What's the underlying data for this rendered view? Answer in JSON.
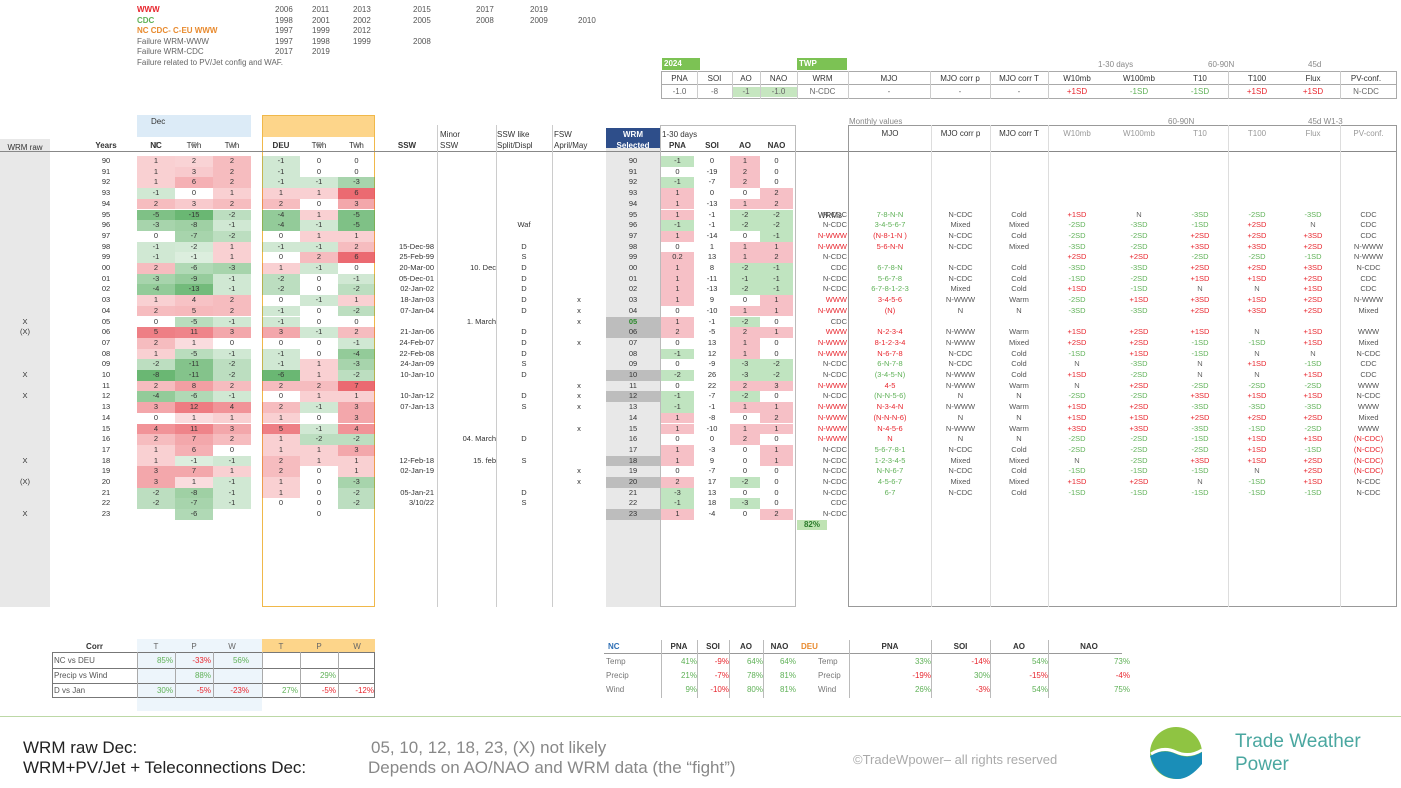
{
  "legend": [
    {
      "label": "WWW",
      "color": "#e8262e",
      "years": [
        "2006",
        "2011",
        "2013",
        "2015",
        "2017",
        "2019"
      ]
    },
    {
      "label": "CDC",
      "color": "#5fb157",
      "years": [
        "1998",
        "2001",
        "2002",
        "2005",
        "2008",
        "2009",
        "2010"
      ]
    },
    {
      "label": "NC CDC- C-EU WWW",
      "color": "#e88a2e",
      "years": [
        "1997",
        "1999",
        "2012"
      ]
    },
    {
      "label": "Failure WRM-WWW",
      "color": "#666",
      "years": [
        "1997",
        "1998",
        "1999",
        "2008"
      ]
    },
    {
      "label": "Failure WRM-CDC",
      "color": "#666",
      "years": [
        "2017",
        "2019"
      ]
    },
    {
      "label": "Failure related to PV/Jet config and WAF.",
      "color": "#666",
      "years": []
    }
  ],
  "forecast": {
    "year_label": "2024",
    "twp_label": "TWP",
    "hdr1": [
      "1-30 days",
      "60-90N",
      "45d"
    ],
    "cols": [
      "PNA",
      "SOI",
      "AO",
      "NAO",
      "WRM",
      "MJO",
      "MJO corr p",
      "MJO corr T",
      "W10mb",
      "W100mb",
      "T10",
      "T100",
      "Flux",
      "PV-conf."
    ],
    "vals": [
      "-1.0",
      "-8",
      "-1",
      "-1.0",
      "N-CDC",
      "-",
      "-",
      "-",
      "+1SD",
      "-1SD",
      "-1SD",
      "+1SD",
      "+1SD",
      "N-CDC"
    ]
  },
  "main": {
    "dec_label": "Dec",
    "monthly_label": "Monthly values",
    "h_60_90": "60-90N",
    "h_45d": "45d W1-3",
    "h_minor": "Minor",
    "h_sswlike": "SSW like",
    "h_fsw": "FSW",
    "h_wrm": "WRM",
    "h_1_30": "1-30 days",
    "h_wrms": "WRMs",
    "cols": [
      "WRM raw",
      "Years",
      "NC",
      "Twh",
      "Twh",
      "DEU",
      "Twh",
      "Twh",
      "SSW",
      "SSW",
      "Split/Displ",
      "April/May",
      "Selected",
      "PNA",
      "SOI",
      "AO",
      "NAO",
      "",
      "MJO",
      "MJO corr p",
      "MJO corr T",
      "W10mb",
      "W100mb",
      "T10",
      "T100",
      "Flux",
      "PV-conf."
    ],
    "sub": [
      "",
      "",
      "T",
      "P",
      "W",
      "T",
      "P",
      "W"
    ],
    "pct": "82%"
  },
  "rows": [
    [
      "",
      "90",
      "1",
      "2",
      "2",
      "-1",
      "0",
      "0",
      "",
      "",
      "",
      "",
      "90",
      "-1",
      "0",
      "1",
      "0",
      "",
      "",
      "",
      "",
      "",
      "",
      "",
      "",
      "",
      ""
    ],
    [
      "",
      "91",
      "1",
      "3",
      "2",
      "-1",
      "0",
      "0",
      "",
      "",
      "",
      "",
      "91",
      "0",
      "-19",
      "2",
      "0",
      "",
      "",
      "",
      "",
      "",
      "",
      "",
      "",
      "",
      ""
    ],
    [
      "",
      "92",
      "1",
      "6",
      "2",
      "-1",
      "-1",
      "-3",
      "",
      "",
      "",
      "",
      "92",
      "-1",
      "-7",
      "2",
      "0",
      "",
      "",
      "",
      "",
      "",
      "",
      "",
      "",
      "",
      ""
    ],
    [
      "",
      "93",
      "-1",
      "0",
      "1",
      "1",
      "1",
      "6",
      "",
      "",
      "",
      "",
      "93",
      "1",
      "0",
      "0",
      "2",
      "",
      "",
      "",
      "",
      "",
      "",
      "",
      "",
      "",
      ""
    ],
    [
      "",
      "94",
      "2",
      "3",
      "2",
      "2",
      "0",
      "3",
      "",
      "",
      "",
      "",
      "94",
      "1",
      "-13",
      "1",
      "2",
      "",
      "",
      "",
      "",
      "",
      "",
      "",
      "",
      "",
      ""
    ],
    [
      "",
      "95",
      "-5",
      "-15",
      "-2",
      "-4",
      "1",
      "-5",
      "",
      "",
      "",
      "",
      "95",
      "1",
      "-1",
      "-2",
      "-2",
      "N-CDC",
      "7-8-N-N",
      "N-CDC",
      "Cold",
      "+1SD",
      "N",
      "-3SD",
      "-2SD",
      "-3SD",
      "CDC"
    ],
    [
      "",
      "96",
      "-3",
      "-8",
      "-1",
      "-4",
      "-1",
      "-5",
      "",
      "",
      "Waf",
      "",
      "96",
      "-1",
      "-1",
      "-2",
      "-2",
      "N-CDC",
      "3-4-5-6-7",
      "Mixed",
      "Mixed",
      "-2SD",
      "-3SD",
      "-1SD",
      "+2SD",
      "N",
      "CDC"
    ],
    [
      "",
      "97",
      "0",
      "-7",
      "-2",
      "0",
      "1",
      "1",
      "",
      "",
      "",
      "",
      "97",
      "1",
      "-14",
      "0",
      "-1",
      "N-WWW",
      "(N-8-1-N )",
      "N-CDC",
      "Cold",
      "-2SD",
      "-2SD",
      "+2SD",
      "+2SD",
      "+3SD",
      "CDC"
    ],
    [
      "",
      "98",
      "-1",
      "-2",
      "1",
      "-1",
      "-1",
      "2",
      "15-Dec-98",
      "",
      "D",
      "",
      "98",
      "0",
      "1",
      "1",
      "1",
      "N-WWW",
      "5-6-N-N",
      "N-CDC",
      "Mixed",
      "-3SD",
      "-2SD",
      "+3SD",
      "+3SD",
      "+2SD",
      "N-WWW"
    ],
    [
      "",
      "99",
      "-1",
      "-1",
      "1",
      "0",
      "2",
      "6",
      "25-Feb-99",
      "",
      "S",
      "",
      "99",
      "0.2",
      "13",
      "1",
      "2",
      "N-CDC",
      "",
      "",
      "",
      "+2SD",
      "+2SD",
      "-2SD",
      "-2SD",
      "-1SD",
      "N-WWW"
    ],
    [
      "",
      "00",
      "2",
      "-6",
      "-3",
      "1",
      "-1",
      "0",
      "20-Mar-00",
      "10. Dec",
      "D",
      "",
      "00",
      "1",
      "8",
      "-2",
      "-1",
      "CDC",
      "6-7-8-N",
      "N-CDC",
      "Cold",
      "-3SD",
      "-3SD",
      "+2SD",
      "+2SD",
      "+3SD",
      "N-CDC"
    ],
    [
      "",
      "01",
      "-3",
      "-9",
      "-1",
      "-2",
      "0",
      "-1",
      "05-Dec-01",
      "",
      "D",
      "",
      "01",
      "1",
      "-11",
      "-1",
      "-1",
      "N-CDC",
      "5-6-7-8",
      "N-CDC",
      "Cold",
      "-1SD",
      "-2SD",
      "+1SD",
      "+1SD",
      "+2SD",
      "CDC"
    ],
    [
      "",
      "02",
      "-4",
      "-13",
      "-1",
      "-2",
      "0",
      "-2",
      "02-Jan-02",
      "",
      "D",
      "",
      "02",
      "1",
      "-13",
      "-2",
      "-1",
      "N-CDC",
      "6-7-8-1-2-3",
      "Mixed",
      "Cold",
      "+1SD",
      "-1SD",
      "N",
      "N",
      "+1SD",
      "CDC"
    ],
    [
      "",
      "03",
      "1",
      "4",
      "2",
      "0",
      "-1",
      "1",
      "18-Jan-03",
      "",
      "D",
      "x",
      "03",
      "1",
      "9",
      "0",
      "1",
      "WWW",
      "3-4-5-6",
      "N-WWW",
      "Warm",
      "-2SD",
      "+1SD",
      "+3SD",
      "+1SD",
      "+2SD",
      "N-WWW"
    ],
    [
      "",
      "04",
      "2",
      "5",
      "2",
      "-1",
      "0",
      "-2",
      "07-Jan-04",
      "",
      "D",
      "x",
      "04",
      "0",
      "-10",
      "1",
      "1",
      "N-WWW",
      "(N)",
      "N",
      "N",
      "-3SD",
      "-3SD",
      "+2SD",
      "+3SD",
      "+2SD",
      "Mixed"
    ],
    [
      "X",
      "05",
      "0",
      "-5",
      "-1",
      "-1",
      "0",
      "0",
      "",
      "1. March",
      "",
      "x",
      "05",
      "1",
      "-1",
      "-2",
      "0",
      "CDC",
      "",
      "",
      "",
      "",
      "",
      "",
      "",
      "",
      ""
    ],
    [
      "(X)",
      "06",
      "5",
      "11",
      "3",
      "3",
      "-1",
      "2",
      "21-Jan-06",
      "",
      "D",
      "",
      "06",
      "2",
      "-5",
      "2",
      "1",
      "WWW",
      "N-2-3-4",
      "N-WWW",
      "Warm",
      "+1SD",
      "+2SD",
      "+1SD",
      "N",
      "+1SD",
      "WWW"
    ],
    [
      "",
      "07",
      "2",
      "1",
      "0",
      "0",
      "0",
      "-1",
      "24-Feb-07",
      "",
      "D",
      "x",
      "07",
      "0",
      "13",
      "1",
      "0",
      "N-WWW",
      "8-1-2-3-4",
      "N-WWW",
      "Mixed",
      "+2SD",
      "+2SD",
      "-1SD",
      "-1SD",
      "+1SD",
      "Mixed"
    ],
    [
      "",
      "08",
      "1",
      "-5",
      "-1",
      "-1",
      "0",
      "-4",
      "22-Feb-08",
      "",
      "D",
      "",
      "08",
      "-1",
      "12",
      "1",
      "0",
      "N-WWW",
      "N-6-7-8",
      "N-CDC",
      "Cold",
      "-1SD",
      "+1SD",
      "-1SD",
      "N",
      "N",
      "N-CDC"
    ],
    [
      "",
      "09",
      "-2",
      "-11",
      "-2",
      "-1",
      "1",
      "-3",
      "24-Jan-09",
      "",
      "S",
      "",
      "09",
      "0",
      "-9",
      "-3",
      "-2",
      "N-CDC",
      "6-N-7-8",
      "N-CDC",
      "Cold",
      "N",
      "-3SD",
      "N",
      "+1SD",
      "-1SD",
      "CDC"
    ],
    [
      "X",
      "10",
      "-8",
      "-11",
      "-2",
      "-6",
      "1",
      "-2",
      "10-Jan-10",
      "",
      "D",
      "",
      "10",
      "-2",
      "26",
      "-3",
      "-2",
      "N-CDC",
      "(3-4-5-N)",
      "N-WWW",
      "Cold",
      "+1SD",
      "-2SD",
      "N",
      "N",
      "+1SD",
      "CDC"
    ],
    [
      "",
      "11",
      "2",
      "8",
      "2",
      "2",
      "2",
      "7",
      "",
      "",
      "",
      "x",
      "11",
      "0",
      "22",
      "2",
      "3",
      "N-WWW",
      "4-5",
      "N-WWW",
      "Warm",
      "N",
      "+2SD",
      "-2SD",
      "-2SD",
      "-2SD",
      "WWW"
    ],
    [
      "X",
      "12",
      "-4",
      "-6",
      "-1",
      "0",
      "1",
      "1",
      "10-Jan-12",
      "",
      "D",
      "x",
      "12",
      "-1",
      "-7",
      "-2",
      "0",
      "N-CDC",
      "(N-N-5-6)",
      "N",
      "N",
      "-2SD",
      "-2SD",
      "+3SD",
      "+1SD",
      "+1SD",
      "N-CDC"
    ],
    [
      "",
      "13",
      "3",
      "12",
      "4",
      "2",
      "-1",
      "3",
      "07-Jan-13",
      "",
      "S",
      "x",
      "13",
      "-1",
      "-1",
      "1",
      "1",
      "N-WWW",
      "N-3-4-N",
      "N-WWW",
      "Warm",
      "+1SD",
      "+2SD",
      "-3SD",
      "-3SD",
      "-3SD",
      "WWW"
    ],
    [
      "",
      "14",
      "0",
      "1",
      "1",
      "1",
      "0",
      "3",
      "",
      "",
      "",
      "",
      "14",
      "1",
      "-8",
      "0",
      "2",
      "N-WWW",
      "(N-N-N-6)",
      "N",
      "N",
      "+1SD",
      "+1SD",
      "+2SD",
      "+2SD",
      "+2SD",
      "Mixed"
    ],
    [
      "",
      "15",
      "4",
      "11",
      "3",
      "5",
      "-1",
      "4",
      "",
      "",
      "",
      "x",
      "15",
      "1",
      "-10",
      "1",
      "1",
      "N-WWW",
      "N-4-5-6",
      "N-WWW",
      "Warm",
      "+3SD",
      "+3SD",
      "-3SD",
      "-1SD",
      "-2SD",
      "WWW"
    ],
    [
      "",
      "16",
      "2",
      "7",
      "2",
      "1",
      "-2",
      "-2",
      "",
      "04. March",
      "D",
      "",
      "16",
      "0",
      "0",
      "2",
      "0",
      "N-WWW",
      "N",
      "N",
      "N",
      "-2SD",
      "-2SD",
      "-1SD",
      "+1SD",
      "+1SD",
      "(N-CDC)"
    ],
    [
      "",
      "17",
      "1",
      "6",
      "0",
      "1",
      "1",
      "3",
      "",
      "",
      "",
      "",
      "17",
      "1",
      "-3",
      "0",
      "1",
      "N-CDC",
      "5-6-7-8-1",
      "N-CDC",
      "Cold",
      "-2SD",
      "-2SD",
      "-2SD",
      "+1SD",
      "-1SD",
      "(N-CDC)"
    ],
    [
      "X",
      "18",
      "1",
      "-1",
      "-1",
      "2",
      "1",
      "1",
      "12-Feb-18",
      "15. feb",
      "S",
      "",
      "18",
      "1",
      "9",
      "0",
      "1",
      "N-CDC",
      "1-2-3-4-5",
      "Mixed",
      "Mixed",
      "N",
      "-2SD",
      "+3SD",
      "+1SD",
      "+2SD",
      "(N-CDC)"
    ],
    [
      "",
      "19",
      "3",
      "7",
      "1",
      "2",
      "0",
      "1",
      "02-Jan-19",
      "",
      "",
      "x",
      "19",
      "0",
      "-7",
      "0",
      "0",
      "N-CDC",
      "N-N-6-7",
      "N-CDC",
      "Cold",
      "-1SD",
      "-1SD",
      "-1SD",
      "N",
      "+2SD",
      "(N-CDC)"
    ],
    [
      "(X)",
      "20",
      "3",
      "1",
      "-1",
      "1",
      "0",
      "-3",
      "",
      "",
      "",
      "x",
      "20",
      "2",
      "17",
      "-2",
      "0",
      "N-CDC",
      "4-5-6-7",
      "Mixed",
      "Mixed",
      "+1SD",
      "+2SD",
      "N",
      "-1SD",
      "+1SD",
      "N-CDC"
    ],
    [
      "",
      "21",
      "-2",
      "-8",
      "-1",
      "1",
      "0",
      "-2",
      "05-Jan-21",
      "",
      "D",
      "",
      "21",
      "-3",
      "13",
      "0",
      "0",
      "N-CDC",
      "6-7",
      "N-CDC",
      "Cold",
      "-1SD",
      "-1SD",
      "-1SD",
      "-1SD",
      "-1SD",
      "N-CDC"
    ],
    [
      "",
      "22",
      "-2",
      "-7",
      "-1",
      "0",
      "0",
      "-2",
      "3/10/22",
      "",
      "S",
      "",
      "22",
      "-1",
      "18",
      "-3",
      "0",
      "CDC",
      "",
      "",
      "",
      "",
      "",
      "",
      "",
      "",
      ""
    ],
    [
      "X",
      "23",
      "",
      "-6",
      "",
      "",
      "0",
      "",
      "",
      "",
      "",
      "",
      "23",
      "1",
      "-4",
      "0",
      "2",
      "N-CDC",
      "",
      "",
      "",
      "",
      "",
      "",
      "",
      "",
      ""
    ]
  ],
  "corr": {
    "title": "Corr",
    "cols": [
      "T",
      "P",
      "W",
      "T",
      "P",
      "W"
    ],
    "rows": [
      {
        "label": "NC vs DEU",
        "vals": [
          "85%",
          "-33%",
          "56%",
          "",
          "",
          ""
        ]
      },
      {
        "label": "Precip vs Wind",
        "vals": [
          "",
          "88%",
          "",
          "",
          "29%",
          ""
        ]
      },
      {
        "label": "D vs Jan",
        "vals": [
          "30%",
          "-5%",
          "-23%",
          "27%",
          "-5%",
          "-12%"
        ]
      }
    ]
  },
  "nc_tele": {
    "title": "NC",
    "cols": [
      "PNA",
      "SOI",
      "AO",
      "NAO"
    ],
    "rows": [
      {
        "label": "Temp",
        "vals": [
          "41%",
          "-9%",
          "64%",
          "64%"
        ]
      },
      {
        "label": "Precip",
        "vals": [
          "21%",
          "-7%",
          "78%",
          "81%"
        ]
      },
      {
        "label": "Wind",
        "vals": [
          "9%",
          "-10%",
          "80%",
          "81%"
        ]
      }
    ]
  },
  "deu_tele": {
    "title": "DEU",
    "cols": [
      "PNA",
      "SOI",
      "AO",
      "NAO"
    ],
    "rows": [
      {
        "label": "Temp",
        "vals": [
          "33%",
          "-14%",
          "54%",
          "73%"
        ]
      },
      {
        "label": "Precip",
        "vals": [
          "-19%",
          "30%",
          "-15%",
          "-4%"
        ]
      },
      {
        "label": "Wind",
        "vals": [
          "26%",
          "-3%",
          "54%",
          "75%"
        ]
      }
    ]
  },
  "footer": {
    "line1_label": "WRM raw Dec:",
    "line1_value": "05, 10, 12, 18, 23, (X) not likely",
    "line2_label": "WRM+PV/Jet + Teleconnections Dec:",
    "line2_value": "Depends on AO/NAO and WRM data (the “fight”)",
    "copyright": "©TradeWpower– all rights reserved",
    "brand1": "Trade Weather",
    "brand2": "Power"
  },
  "colors": {
    "green": "#5fb157",
    "red": "#e8262e",
    "orange": "#e88a2e",
    "brand": "#4aa7a0"
  }
}
